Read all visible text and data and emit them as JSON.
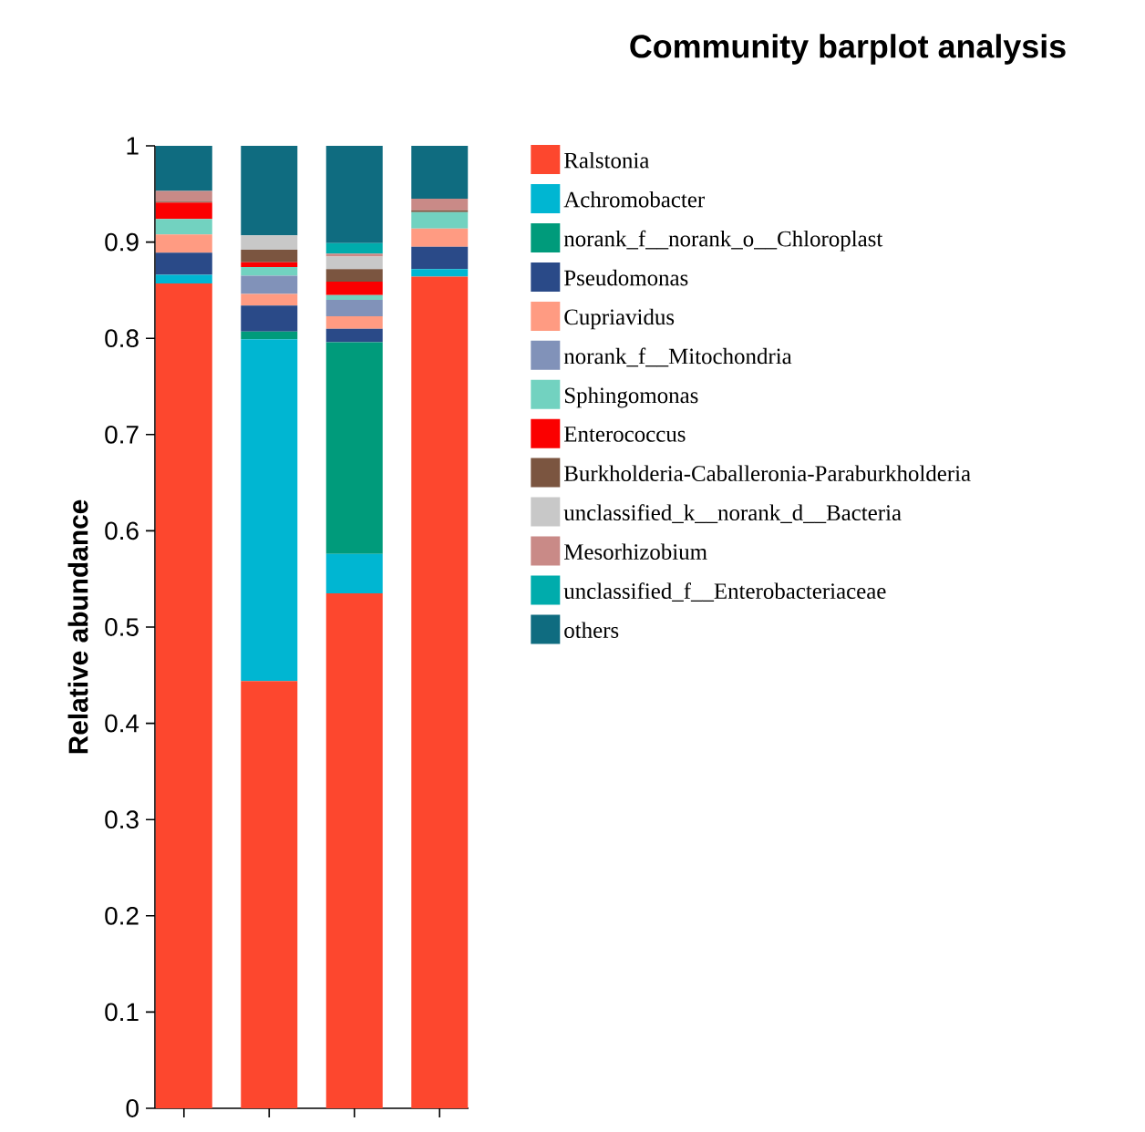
{
  "chart_data": {
    "type": "bar",
    "stacked": true,
    "title": "Community barplot analysis",
    "ylabel": "Relative abundance",
    "categories": [
      null,
      null,
      null,
      null
    ],
    "ylim": [
      0,
      1
    ],
    "yticks": [
      0,
      0.1,
      0.2,
      0.3,
      0.4,
      0.5,
      0.6,
      0.7,
      0.8,
      0.9,
      1
    ],
    "tick_labels": "y",
    "legend": "right",
    "series": [
      {
        "name": "Ralstonia",
        "color": "#fd472e",
        "values": [
          0.857,
          0.444,
          0.535,
          0.864
        ]
      },
      {
        "name": "Achromobacter",
        "color": "#00b6d2",
        "values": [
          0.009,
          0.355,
          0.041,
          0.008
        ]
      },
      {
        "name": "norank_f__norank_o__Chloroplast",
        "color": "#009b7b",
        "values": [
          0,
          0.008,
          0.22,
          0
        ]
      },
      {
        "name": "Pseudomonas",
        "color": "#2a4a88",
        "values": [
          0.023,
          0.027,
          0.014,
          0.023
        ]
      },
      {
        "name": "Cupriavidus",
        "color": "#ff9b82",
        "values": [
          0.019,
          0.012,
          0.013,
          0.019
        ]
      },
      {
        "name": "norank_f__Mitochondria",
        "color": "#8192b9",
        "values": [
          0,
          0.019,
          0.017,
          0
        ]
      },
      {
        "name": "Sphingomonas",
        "color": "#72d2c0",
        "values": [
          0.016,
          0.009,
          0.005,
          0.017
        ]
      },
      {
        "name": "Enterococcus",
        "color": "#fb0000",
        "values": [
          0.017,
          0.005,
          0.014,
          0
        ]
      },
      {
        "name": "Burkholderia-Caballeronia-Paraburkholderia",
        "color": "#7b5540",
        "values": [
          0.001,
          0.013,
          0.013,
          0.002
        ]
      },
      {
        "name": "unclassified_k__norank_d__Bacteria",
        "color": "#c8c8c8",
        "values": [
          0,
          0.015,
          0.013,
          0
        ]
      },
      {
        "name": "Mesorhizobium",
        "color": "#c98a87",
        "values": [
          0.011,
          0,
          0.003,
          0.012
        ]
      },
      {
        "name": "unclassified_f__Enterobacteriaceae",
        "color": "#00acac",
        "values": [
          0,
          0,
          0.011,
          0
        ]
      },
      {
        "name": "others",
        "color": "#0f6c80",
        "values": [
          0.047,
          0.093,
          0.101,
          0.055
        ]
      }
    ]
  }
}
